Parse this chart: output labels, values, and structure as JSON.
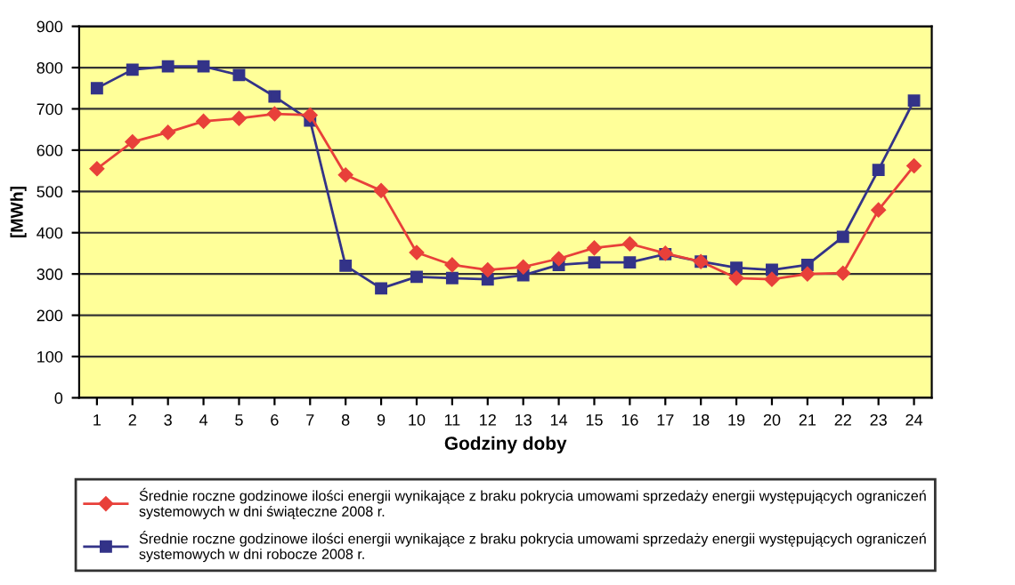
{
  "chart_data": {
    "type": "line",
    "xlabel": "Godziny doby",
    "ylabel": "[MWh]",
    "categories": [
      "1",
      "2",
      "3",
      "4",
      "5",
      "6",
      "7",
      "8",
      "9",
      "10",
      "11",
      "12",
      "13",
      "14",
      "15",
      "16",
      "17",
      "18",
      "19",
      "20",
      "21",
      "22",
      "23",
      "24"
    ],
    "series": [
      {
        "name": "Średnie roczne godzinowe ilości energii wynikające z braku pokrycia umowami sprzedaży energii występujących ograniczeń systemowych w dni świąteczne 2008 r.",
        "color": "#e8403a",
        "marker": "diamond",
        "values": [
          555,
          620,
          643,
          670,
          677,
          688,
          685,
          540,
          502,
          352,
          322,
          310,
          317,
          337,
          363,
          373,
          350,
          330,
          290,
          287,
          300,
          302,
          455,
          562
        ]
      },
      {
        "name": "Średnie roczne godzinowe ilości energii wynikające z braku pokrycia umowami sprzedaży energii występujących ograniczeń systemowych w dni robocze 2008 r.",
        "color": "#333388",
        "marker": "square",
        "values": [
          750,
          795,
          803,
          803,
          782,
          730,
          672,
          320,
          265,
          293,
          290,
          287,
          297,
          322,
          328,
          328,
          348,
          330,
          315,
          310,
          322,
          390,
          552,
          720
        ]
      }
    ],
    "ylim": [
      0,
      900
    ],
    "yticks": [
      0,
      100,
      200,
      300,
      400,
      500,
      600,
      700,
      800,
      900
    ],
    "grid": "y",
    "legend": "bottom",
    "line_style": "solid"
  }
}
